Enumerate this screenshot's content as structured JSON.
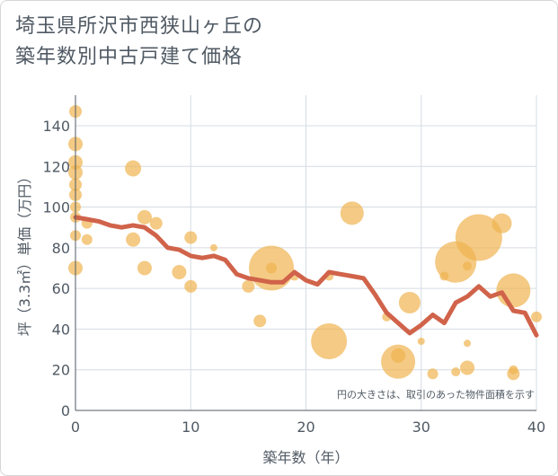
{
  "chart_data": {
    "type": "scatter",
    "title_line1": "埼玉県所沢市西狭山ヶ丘の",
    "title_line2": "築年数別中古戸建て価格",
    "xlabel": "築年数（年）",
    "ylabel": "坪（3.3㎡）単価（万円）",
    "xlim": [
      0,
      40
    ],
    "ylim": [
      0,
      155
    ],
    "x_ticks": [
      0,
      10,
      20,
      30,
      40
    ],
    "y_ticks": [
      0,
      20,
      40,
      60,
      80,
      100,
      120,
      140
    ],
    "grid": true,
    "annotation": "円の大きさは、取引のあった物件面積を示す",
    "colors": {
      "bubble": "#f0b450",
      "line": "#d0634a",
      "grid": "#d5dce3",
      "text": "#505a64"
    },
    "bubbles": [
      {
        "x": 0,
        "y": 147,
        "s": 7
      },
      {
        "x": 0,
        "y": 131,
        "s": 8
      },
      {
        "x": 0,
        "y": 122,
        "s": 8
      },
      {
        "x": 0,
        "y": 117,
        "s": 8
      },
      {
        "x": 0,
        "y": 111,
        "s": 7
      },
      {
        "x": 0,
        "y": 106,
        "s": 7
      },
      {
        "x": 0,
        "y": 100,
        "s": 6
      },
      {
        "x": 0,
        "y": 95,
        "s": 6
      },
      {
        "x": 0,
        "y": 86,
        "s": 6
      },
      {
        "x": 0,
        "y": 70,
        "s": 8
      },
      {
        "x": 1,
        "y": 92,
        "s": 6
      },
      {
        "x": 1,
        "y": 84,
        "s": 6
      },
      {
        "x": 5,
        "y": 119,
        "s": 9
      },
      {
        "x": 5,
        "y": 84,
        "s": 8
      },
      {
        "x": 6,
        "y": 95,
        "s": 8
      },
      {
        "x": 6,
        "y": 70,
        "s": 8
      },
      {
        "x": 7,
        "y": 92,
        "s": 7
      },
      {
        "x": 9,
        "y": 68,
        "s": 8
      },
      {
        "x": 10,
        "y": 85,
        "s": 7
      },
      {
        "x": 10,
        "y": 61,
        "s": 7
      },
      {
        "x": 12,
        "y": 80,
        "s": 4
      },
      {
        "x": 15,
        "y": 61,
        "s": 7
      },
      {
        "x": 16,
        "y": 44,
        "s": 7
      },
      {
        "x": 17,
        "y": 70,
        "s": 25
      },
      {
        "x": 17,
        "y": 70,
        "s": 6
      },
      {
        "x": 19,
        "y": 66,
        "s": 5
      },
      {
        "x": 22,
        "y": 66,
        "s": 5
      },
      {
        "x": 22,
        "y": 34,
        "s": 20
      },
      {
        "x": 24,
        "y": 97,
        "s": 13
      },
      {
        "x": 27,
        "y": 46,
        "s": 5
      },
      {
        "x": 28,
        "y": 24,
        "s": 19
      },
      {
        "x": 28,
        "y": 27,
        "s": 8
      },
      {
        "x": 29,
        "y": 53,
        "s": 12
      },
      {
        "x": 30,
        "y": 34,
        "s": 4
      },
      {
        "x": 31,
        "y": 18,
        "s": 6
      },
      {
        "x": 32,
        "y": 66,
        "s": 5
      },
      {
        "x": 33,
        "y": 73,
        "s": 23
      },
      {
        "x": 33,
        "y": 19,
        "s": 5
      },
      {
        "x": 34,
        "y": 71,
        "s": 5
      },
      {
        "x": 34,
        "y": 33,
        "s": 4
      },
      {
        "x": 34,
        "y": 21,
        "s": 8
      },
      {
        "x": 35,
        "y": 85,
        "s": 26
      },
      {
        "x": 37,
        "y": 92,
        "s": 11
      },
      {
        "x": 38,
        "y": 59,
        "s": 19
      },
      {
        "x": 38,
        "y": 20,
        "s": 5
      },
      {
        "x": 38,
        "y": 18,
        "s": 7
      },
      {
        "x": 40,
        "y": 46,
        "s": 6
      }
    ],
    "trend": {
      "x": [
        0,
        1,
        2,
        3,
        4,
        5,
        6,
        7,
        8,
        9,
        10,
        11,
        12,
        13,
        14,
        15,
        16,
        17,
        18,
        19,
        20,
        21,
        22,
        23,
        24,
        25,
        26,
        27,
        28,
        29,
        30,
        31,
        32,
        33,
        34,
        35,
        36,
        37,
        38,
        39,
        40
      ],
      "y": [
        95,
        94,
        93,
        91,
        90,
        91,
        90,
        86,
        80,
        79,
        76,
        75,
        76,
        74,
        67,
        65,
        64,
        63,
        63,
        68,
        64,
        62,
        68,
        67,
        66,
        65,
        57,
        48,
        43,
        38,
        42,
        47,
        43,
        53,
        56,
        61,
        56,
        58,
        49,
        48,
        37
      ]
    }
  }
}
